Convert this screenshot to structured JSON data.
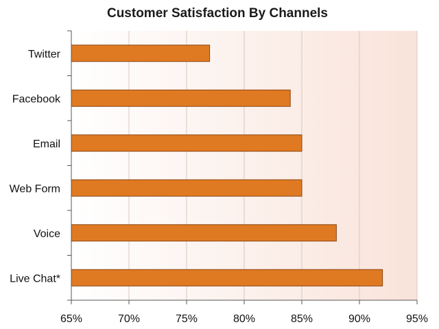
{
  "chart_data": {
    "type": "bar",
    "orientation": "horizontal",
    "title": "Customer Satisfaction By Channels",
    "categories": [
      "Twitter",
      "Facebook",
      "Email",
      "Web Form",
      "Voice",
      "Live Chat*"
    ],
    "values": [
      77,
      84,
      85,
      85,
      88,
      92
    ],
    "xlim": [
      65,
      95
    ],
    "x_ticks": [
      65,
      70,
      75,
      80,
      85,
      90,
      95
    ],
    "x_tick_labels": [
      "65%",
      "70%",
      "75%",
      "80%",
      "85%",
      "90%",
      "95%"
    ],
    "xlabel": "",
    "ylabel": "",
    "grid": "vertical",
    "legend": "none"
  },
  "colors": {
    "bar_fill": "#e07a22",
    "bar_stroke": "#8a4410",
    "plot_bg_left": "#ffffff",
    "plot_bg_right": "#f9e3da",
    "grid": "#d9c8c2",
    "axis": "#555555"
  }
}
